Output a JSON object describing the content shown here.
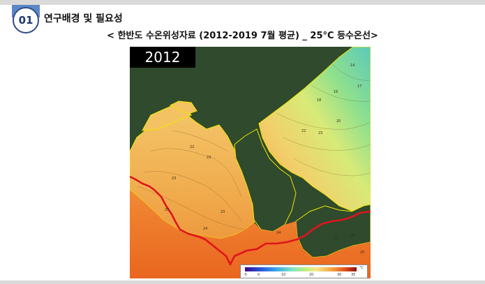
{
  "header": {
    "section_number": "01",
    "section_title": "연구배경 및 필요성"
  },
  "map": {
    "title": "< 한반도 수온위성자료 (2012-2019 7월 평균) _ 25°C 등수온선>",
    "year": "2012",
    "colorbar": {
      "ticks": [
        "-5",
        "0",
        "10",
        "20",
        "30",
        "35"
      ],
      "unit": "°C"
    },
    "contour_labels": [
      "14",
      "16",
      "17",
      "18",
      "20",
      "22",
      "22",
      "23",
      "23",
      "23",
      "23",
      "24",
      "24",
      "25",
      "25",
      "26",
      "27"
    ],
    "colors": {
      "land": "#2f4a2c",
      "warm_sea": "#f0b052",
      "hot_sea": "#ec7b2e",
      "cool_sea": "#6fd3a8",
      "isotherm": "#e0141e",
      "coastline": "#f2e600"
    }
  }
}
